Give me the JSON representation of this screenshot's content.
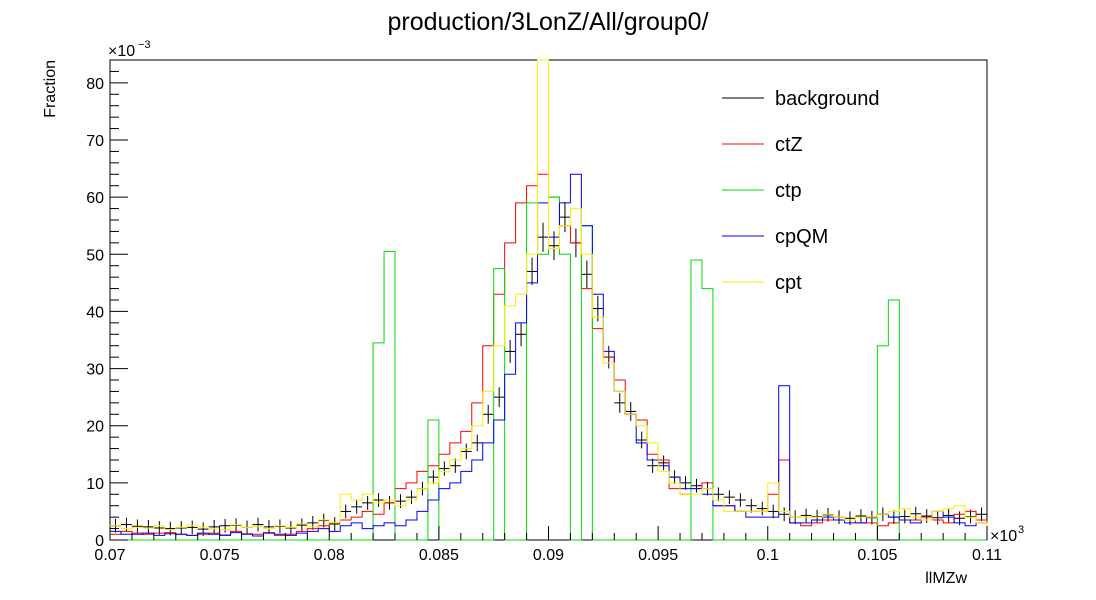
{
  "chart_data": {
    "type": "histogram-step",
    "title": "production/3LonZ/All/group0/",
    "xlabel": "llMZw",
    "ylabel": "Fraction",
    "x_multiplier_label": "×10",
    "x_multiplier_exp": "3",
    "y_multiplier_label": "×10",
    "y_multiplier_exp": "−3",
    "xlim": [
      0.07,
      0.11
    ],
    "ylim": [
      0,
      84
    ],
    "x_ticks": [
      0.07,
      0.075,
      0.08,
      0.085,
      0.09,
      0.095,
      0.1,
      0.105,
      0.11
    ],
    "x_tick_labels": [
      "0.07",
      "0.075",
      "0.08",
      "0.085",
      "0.09",
      "0.095",
      "0.1",
      "0.105",
      "0.11"
    ],
    "y_ticks": [
      0,
      10,
      20,
      30,
      40,
      50,
      60,
      70,
      80
    ],
    "y_tick_labels": [
      "0",
      "10",
      "20",
      "30",
      "40",
      "50",
      "60",
      "70",
      "80"
    ],
    "bins": {
      "start": 0.07,
      "width": 0.0005,
      "count": 80
    },
    "legend_position": "top-right",
    "series": [
      {
        "name": "background",
        "color": "#000000",
        "style": "points",
        "values": [
          2.5,
          2.7,
          2.4,
          2.3,
          2.1,
          2,
          2.1,
          2.2,
          1.9,
          2.3,
          2.5,
          2.6,
          2.2,
          2.7,
          2.3,
          2.4,
          2.1,
          2.6,
          3,
          3.4,
          2.8,
          5,
          5.8,
          6.5,
          7,
          6.5,
          6.8,
          7.5,
          9,
          11,
          12.5,
          13,
          15.5,
          17,
          22,
          25,
          33,
          36,
          47,
          53,
          51.5,
          56.5,
          52,
          46.5,
          40.5,
          32,
          24,
          22.5,
          17.5,
          13,
          13.5,
          11,
          10,
          9.5,
          9,
          8,
          7.5,
          7,
          6,
          5.5,
          5,
          4.5,
          4,
          4.3,
          4.1,
          4.4,
          4,
          3.8,
          4.2,
          3.9,
          4.5,
          4,
          4.1,
          4.6,
          4.2,
          3.9,
          4.3,
          3.8,
          4.1,
          4.5
        ]
      },
      {
        "name": "ctZ",
        "color": "#ff0000",
        "style": "step",
        "values": [
          1,
          1.5,
          1.2,
          1,
          1.2,
          1.3,
          1,
          0.8,
          1,
          1.2,
          0.9,
          1.5,
          1.1,
          1,
          1.3,
          0.8,
          1,
          1.5,
          2,
          2.5,
          3,
          3.5,
          4,
          5,
          4.5,
          6.5,
          9,
          10,
          12,
          13,
          15,
          17,
          19,
          24,
          34,
          43,
          52,
          59,
          62,
          64,
          60,
          55,
          52,
          44,
          37,
          32,
          28,
          22,
          21,
          15,
          14,
          9,
          8,
          9,
          10,
          6,
          6,
          5,
          5,
          5,
          8,
          14,
          3,
          2.5,
          3,
          3.5,
          4,
          3.5,
          3,
          3,
          2.5,
          3,
          3.5,
          3.5,
          4,
          3.5,
          3,
          4.5,
          5,
          3.5
        ]
      },
      {
        "name": "ctp",
        "color": "#00dd00",
        "style": "step",
        "values": [
          0,
          0,
          0,
          0,
          0,
          0,
          0,
          0,
          0,
          0,
          0,
          0,
          0,
          0,
          0,
          0,
          0,
          0,
          0,
          0,
          0,
          0,
          0,
          0,
          34.5,
          50.5,
          0,
          0,
          0,
          21,
          0,
          0,
          0,
          0,
          0,
          47.5,
          0,
          0,
          59,
          50,
          60,
          50,
          0,
          55,
          0,
          0,
          0,
          0,
          0,
          0,
          0,
          0,
          0,
          49,
          44,
          0,
          0,
          0,
          0,
          0,
          0,
          0,
          0,
          0,
          0,
          0,
          0,
          0,
          0,
          0,
          34,
          42,
          0,
          0,
          0,
          0,
          0,
          0,
          0,
          0
        ]
      },
      {
        "name": "cpQM",
        "color": "#0000ff",
        "style": "step",
        "values": [
          1.5,
          1,
          1,
          1.2,
          0.8,
          1.1,
          1,
          0.8,
          1.2,
          1,
          0.8,
          1.3,
          1,
          0.7,
          1.2,
          1,
          0.8,
          1.2,
          1.5,
          2,
          1.5,
          2.5,
          3,
          2,
          2.5,
          3,
          2.5,
          3.5,
          5,
          7,
          9,
          10,
          12,
          14,
          17,
          21,
          29,
          38,
          45,
          59,
          53,
          59,
          64,
          55,
          43,
          33,
          26,
          22,
          17,
          14,
          13,
          11,
          9,
          9,
          8,
          6,
          6,
          5,
          4,
          4,
          4,
          27,
          3,
          3,
          3.5,
          4,
          3.5,
          3,
          3,
          4,
          4.5,
          4,
          3.5,
          3,
          3.5,
          5,
          4,
          3,
          2.5,
          3
        ]
      },
      {
        "name": "cpt",
        "color": "#ffee00",
        "style": "step",
        "values": [
          2.5,
          2,
          2.2,
          2.1,
          2.5,
          1.8,
          2.2,
          2.6,
          2.3,
          2,
          1.8,
          2.7,
          2.2,
          2.4,
          2,
          2.5,
          2.2,
          2.8,
          2.3,
          3.5,
          3,
          8,
          7,
          8,
          6.5,
          7,
          6,
          7,
          9,
          10,
          12,
          14,
          16,
          20,
          26,
          34,
          41,
          43,
          50,
          84,
          51,
          55,
          58,
          50,
          39,
          31,
          26,
          22,
          20,
          17,
          12,
          10,
          8,
          8,
          9,
          7,
          5,
          5,
          5,
          5,
          10,
          5,
          4,
          4,
          4,
          4.5,
          4,
          3.5,
          4,
          4,
          4.5,
          5,
          5.5,
          4,
          3.5,
          5,
          5.5,
          6,
          4,
          3
        ]
      }
    ]
  }
}
